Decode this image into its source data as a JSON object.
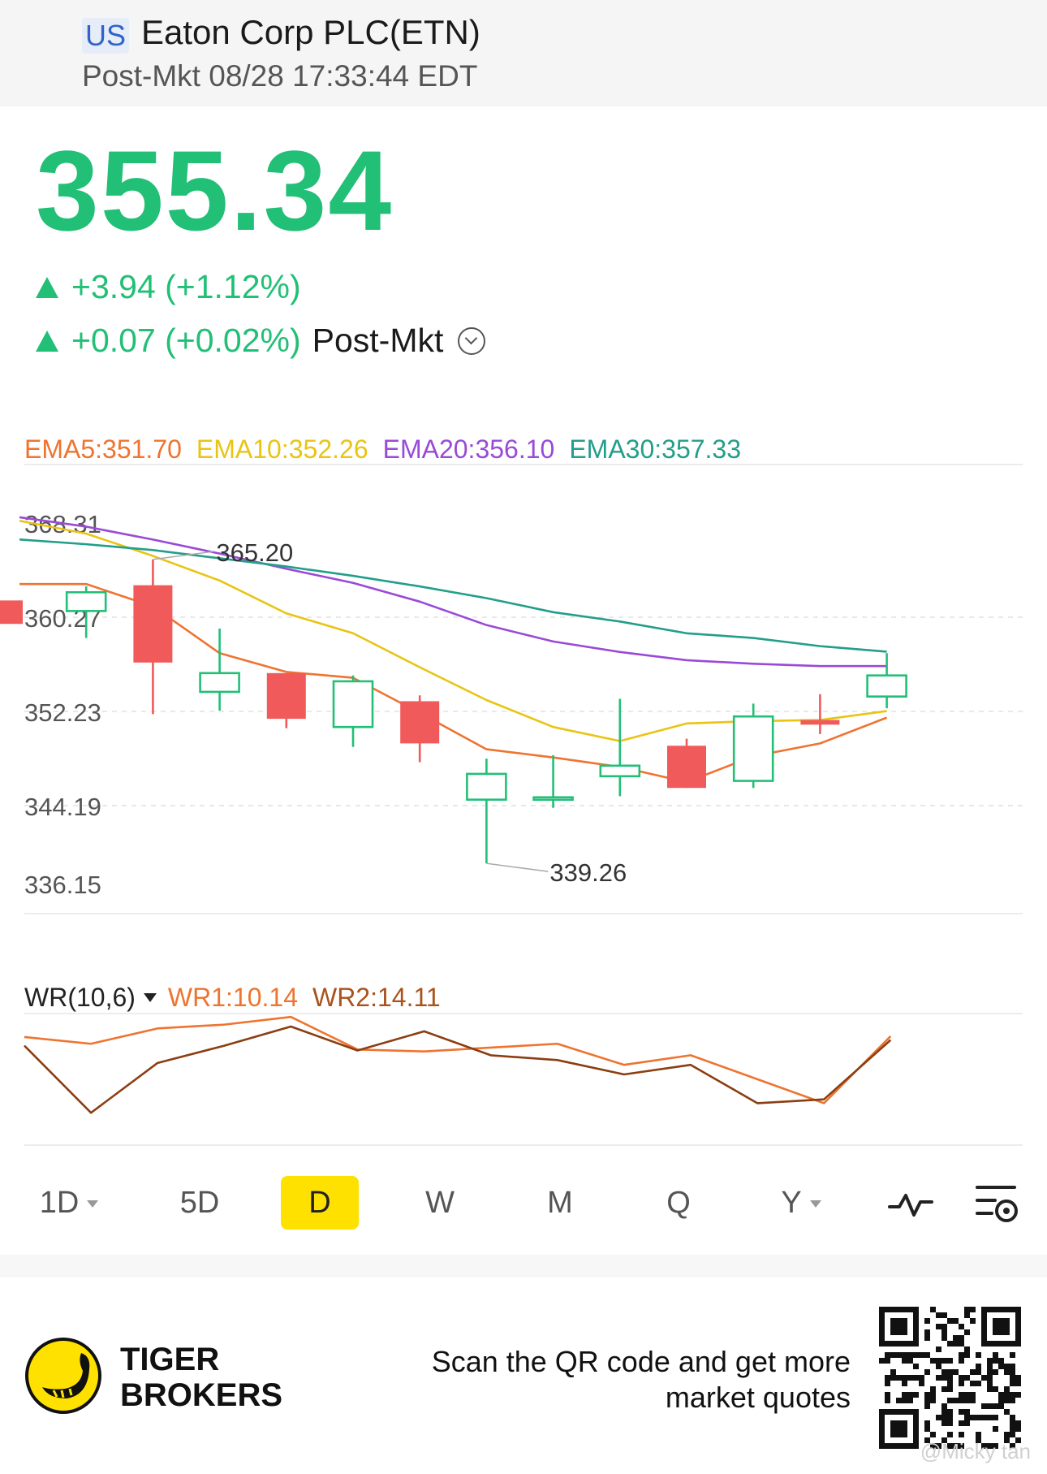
{
  "header": {
    "market": "US",
    "name": "Eaton Corp PLC(ETN)",
    "session_time": "Post-Mkt 08/28 17:33:44 EDT"
  },
  "quote": {
    "price": "355.34",
    "change": "+3.94 (+1.12%)",
    "post_change": "+0.07 (+0.02%)",
    "post_label": "Post-Mkt"
  },
  "ema_legend": [
    {
      "text": "EMA5:351.70",
      "color": "#ee7430"
    },
    {
      "text": "EMA10:352.26",
      "color": "#e9c413"
    },
    {
      "text": "EMA20:356.10",
      "color": "#9a4ad6"
    },
    {
      "text": "EMA30:357.33",
      "color": "#229e8a"
    }
  ],
  "chart_data": [
    {
      "type": "candlestick",
      "yticks": [
        "368.31",
        "360.27",
        "352.23",
        "344.19",
        "336.15"
      ],
      "ylim": [
        336.15,
        368.31
      ],
      "annotations": {
        "high": "365.20",
        "low": "339.26"
      },
      "candles": [
        {
          "open": 361.7,
          "close": 359.7,
          "high": 361.7,
          "low": 359.7
        },
        {
          "open": 360.8,
          "close": 362.4,
          "high": 362.9,
          "low": 358.5
        },
        {
          "open": 363.0,
          "close": 356.4,
          "high": 365.2,
          "low": 352.0
        },
        {
          "open": 353.9,
          "close": 355.5,
          "high": 359.3,
          "low": 352.3
        },
        {
          "open": 355.5,
          "close": 351.6,
          "high": 355.5,
          "low": 350.8
        },
        {
          "open": 350.9,
          "close": 354.8,
          "high": 355.3,
          "low": 349.2
        },
        {
          "open": 353.1,
          "close": 349.5,
          "high": 353.6,
          "low": 347.9
        },
        {
          "open": 344.7,
          "close": 346.9,
          "high": 348.2,
          "low": 339.26
        },
        {
          "open": 344.9,
          "close": 344.9,
          "high": 348.5,
          "low": 344.0
        },
        {
          "open": 346.7,
          "close": 347.6,
          "high": 353.3,
          "low": 345.0
        },
        {
          "open": 349.3,
          "close": 345.7,
          "high": 349.9,
          "low": 345.7
        },
        {
          "open": 346.3,
          "close": 351.8,
          "high": 352.9,
          "low": 345.7
        },
        {
          "open": 351.5,
          "close": 351.1,
          "high": 353.7,
          "low": 350.3
        },
        {
          "open": 353.5,
          "close": 355.3,
          "high": 357.2,
          "low": 352.5
        }
      ],
      "series": [
        {
          "name": "EMA5",
          "color": "#ee7430",
          "values": [
            363.1,
            363.1,
            361.2,
            357.2,
            355.6,
            355.1,
            352.1,
            349.0,
            348.3,
            347.5,
            346.2,
            348.4,
            349.5,
            351.7
          ]
        },
        {
          "name": "EMA10",
          "color": "#e9c413",
          "values": [
            368.5,
            367.4,
            365.5,
            363.4,
            360.6,
            358.9,
            356.0,
            353.2,
            350.9,
            349.7,
            351.2,
            351.4,
            351.5,
            352.26
          ]
        },
        {
          "name": "EMA20",
          "color": "#9a4ad6",
          "values": [
            368.8,
            368.0,
            366.9,
            365.7,
            364.4,
            363.2,
            361.6,
            359.6,
            358.2,
            357.3,
            356.6,
            356.3,
            356.1,
            356.1
          ]
        },
        {
          "name": "EMA30",
          "color": "#229e8a",
          "values": [
            366.9,
            366.5,
            366.0,
            365.3,
            364.6,
            363.8,
            362.9,
            361.9,
            360.7,
            359.9,
            358.9,
            358.5,
            357.8,
            357.33
          ]
        }
      ]
    },
    {
      "type": "line",
      "title": "WR(10,6)",
      "ylim": [
        0,
        100
      ],
      "series": [
        {
          "name": "WR1",
          "color": "#ee7430",
          "values": [
            11,
            18,
            2,
            -2,
            -10,
            24,
            26,
            22,
            18,
            40,
            30,
            55,
            80,
            10.14
          ]
        },
        {
          "name": "WR2",
          "color": "#8b3e12",
          "values": [
            20,
            90,
            38,
            20,
            0,
            25,
            5,
            30,
            35,
            50,
            40,
            80,
            76,
            14.11
          ]
        }
      ]
    }
  ],
  "wr_legend": {
    "name": "WR(10,6)",
    "wr1": "WR1:10.14",
    "wr2": "WR2:14.11"
  },
  "periods": [
    {
      "label": "1D",
      "dropdown": true
    },
    {
      "label": "5D"
    },
    {
      "label": "D",
      "active": true
    },
    {
      "label": "W"
    },
    {
      "label": "M"
    },
    {
      "label": "Q"
    },
    {
      "label": "Y",
      "dropdown": true
    }
  ],
  "tools": {
    "indicator_icon": "pulse-icon",
    "settings_icon": "chart-settings-icon"
  },
  "footer": {
    "brand_line1": "TIGER",
    "brand_line2": "BROKERS",
    "scan_line1": "Scan the QR code and get more",
    "scan_line2": "market quotes",
    "watermark": "@Micky tan"
  },
  "colors": {
    "up": "#22bf76",
    "down": "#f05a5a",
    "accent": "#ffe100"
  }
}
